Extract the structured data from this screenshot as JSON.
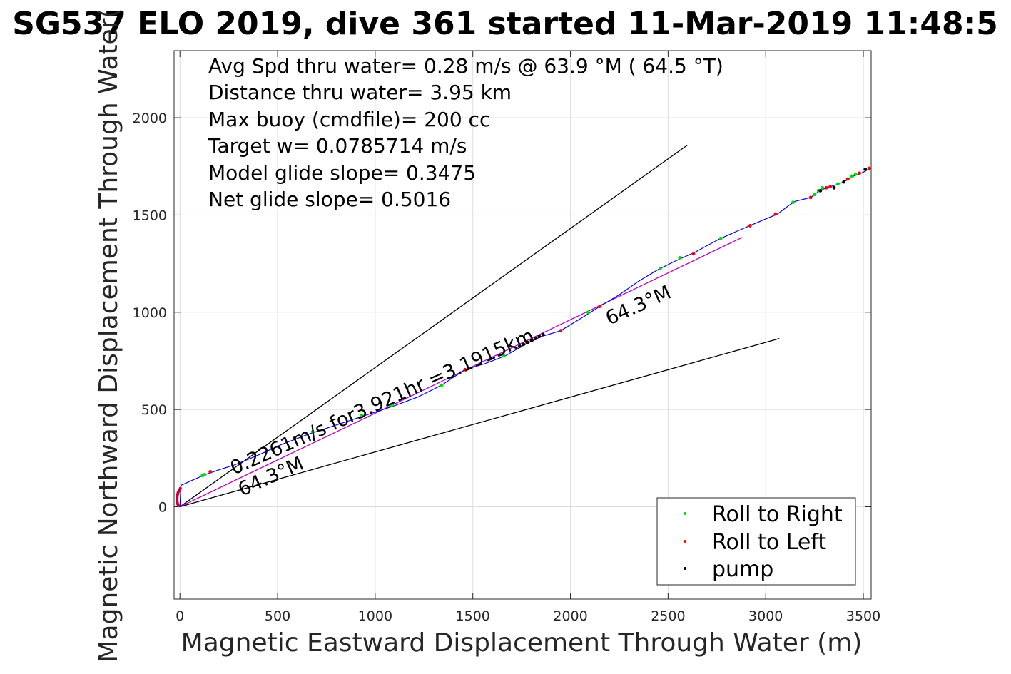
{
  "chart_data": {
    "type": "scatter",
    "title": "SG537 ELO 2019, dive 361 started 11-Mar-2019 11:48:5",
    "xlabel": "Magnetic Eastward Displacement Through Water (m)",
    "ylabel": "Magnetic Northward Displacement Through Water(",
    "xlim": [
      -30,
      3540
    ],
    "ylim": [
      -475,
      2345
    ],
    "xticks": [
      0,
      500,
      1000,
      1500,
      2000,
      2500,
      3000,
      3500
    ],
    "yticks": [
      0,
      500,
      1000,
      1500,
      2000
    ],
    "grid": true,
    "annotations": [
      "Avg Spd thru water=  0.28 m/s @  63.9 °M ( 64.5 °T)",
      "Distance thru water=  3.95 km",
      "Max buoy (cmdfile)= 200 cc",
      "Target w= 0.0785714 m/s",
      "Model glide slope= 0.3475",
      "Net glide slope= 0.5016"
    ],
    "line_labels": {
      "speed": "0.2261m/s for3.921hr =3.1915km",
      "heading_lower": "64.3°M",
      "heading_upper": "64.3°M"
    },
    "legend": {
      "placement": "bottom-right",
      "entries": [
        {
          "label": "Roll to Right",
          "color": "#00dd00"
        },
        {
          "label": "Roll to Left",
          "color": "#ff0000"
        },
        {
          "label": "pump",
          "color": "#000000"
        }
      ]
    },
    "reference_lines": [
      {
        "name": "upper-bound",
        "color": "#000000",
        "points": [
          [
            0,
            0
          ],
          [
            2600,
            1860
          ]
        ]
      },
      {
        "name": "lower-bound",
        "color": "#000000",
        "points": [
          [
            0,
            0
          ],
          [
            3070,
            865
          ]
        ]
      },
      {
        "name": "heading",
        "color": "#c000c0",
        "points": [
          [
            0,
            0
          ],
          [
            2880,
            1385
          ]
        ]
      }
    ],
    "track": {
      "color": "#0000ff",
      "points": [
        [
          0,
          0
        ],
        [
          5,
          110
        ],
        [
          60,
          135
        ],
        [
          130,
          165
        ],
        [
          200,
          190
        ],
        [
          280,
          215
        ],
        [
          400,
          265
        ],
        [
          520,
          320
        ],
        [
          650,
          370
        ],
        [
          800,
          420
        ],
        [
          950,
          470
        ],
        [
          1100,
          520
        ],
        [
          1220,
          565
        ],
        [
          1340,
          625
        ],
        [
          1460,
          705
        ],
        [
          1560,
          735
        ],
        [
          1665,
          775
        ],
        [
          1760,
          830
        ],
        [
          1850,
          875
        ],
        [
          1950,
          905
        ],
        [
          2080,
          985
        ],
        [
          2150,
          1030
        ],
        [
          2250,
          1090
        ],
        [
          2350,
          1160
        ],
        [
          2450,
          1220
        ],
        [
          2530,
          1260
        ],
        [
          2640,
          1310
        ],
        [
          2760,
          1375
        ],
        [
          2860,
          1420
        ],
        [
          2930,
          1450
        ],
        [
          3060,
          1505
        ],
        [
          3120,
          1550
        ],
        [
          3150,
          1570
        ],
        [
          3230,
          1590
        ],
        [
          3270,
          1620
        ],
        [
          3310,
          1640
        ],
        [
          3360,
          1655
        ],
        [
          3400,
          1670
        ],
        [
          3450,
          1700
        ],
        [
          3500,
          1720
        ],
        [
          3535,
          1740
        ]
      ]
    },
    "start_cluster": {
      "color": "#cc0033",
      "points": [
        [
          -8,
          5
        ],
        [
          -12,
          15
        ],
        [
          -15,
          30
        ],
        [
          -15,
          45
        ],
        [
          -13,
          60
        ],
        [
          -9,
          75
        ],
        [
          -3,
          85
        ],
        [
          2,
          95
        ]
      ]
    },
    "points": {
      "roll_right": {
        "color": "#00dd00",
        "points": [
          [
            115,
            160
          ],
          [
            125,
            165
          ],
          [
            680,
            385
          ],
          [
            930,
            470
          ],
          [
            1085,
            522
          ],
          [
            1340,
            625
          ],
          [
            1660,
            775
          ],
          [
            2090,
            1000
          ],
          [
            2460,
            1225
          ],
          [
            2560,
            1280
          ],
          [
            2770,
            1380
          ],
          [
            3140,
            1565
          ],
          [
            3250,
            1605
          ],
          [
            3270,
            1625
          ],
          [
            3290,
            1640
          ],
          [
            3370,
            1660
          ],
          [
            3440,
            1700
          ],
          [
            3460,
            1710
          ]
        ]
      },
      "roll_left": {
        "color": "#ff0000",
        "points": [
          [
            155,
            180
          ],
          [
            1460,
            705
          ],
          [
            1950,
            905
          ],
          [
            2150,
            1030
          ],
          [
            2630,
            1300
          ],
          [
            2920,
            1445
          ],
          [
            3050,
            1505
          ],
          [
            3230,
            1590
          ],
          [
            3310,
            1640
          ],
          [
            3330,
            1645
          ],
          [
            3420,
            1685
          ],
          [
            3480,
            1715
          ],
          [
            3530,
            1740
          ],
          [
            3555,
            1740
          ]
        ]
      },
      "pump": {
        "color": "#000000",
        "points": [
          [
            1740,
            825
          ],
          [
            1760,
            835
          ],
          [
            1780,
            845
          ],
          [
            1800,
            855
          ],
          [
            1820,
            865
          ],
          [
            1840,
            875
          ],
          [
            1860,
            885
          ],
          [
            3280,
            1625
          ],
          [
            3350,
            1640
          ],
          [
            3400,
            1670
          ],
          [
            3510,
            1735
          ]
        ]
      }
    }
  }
}
